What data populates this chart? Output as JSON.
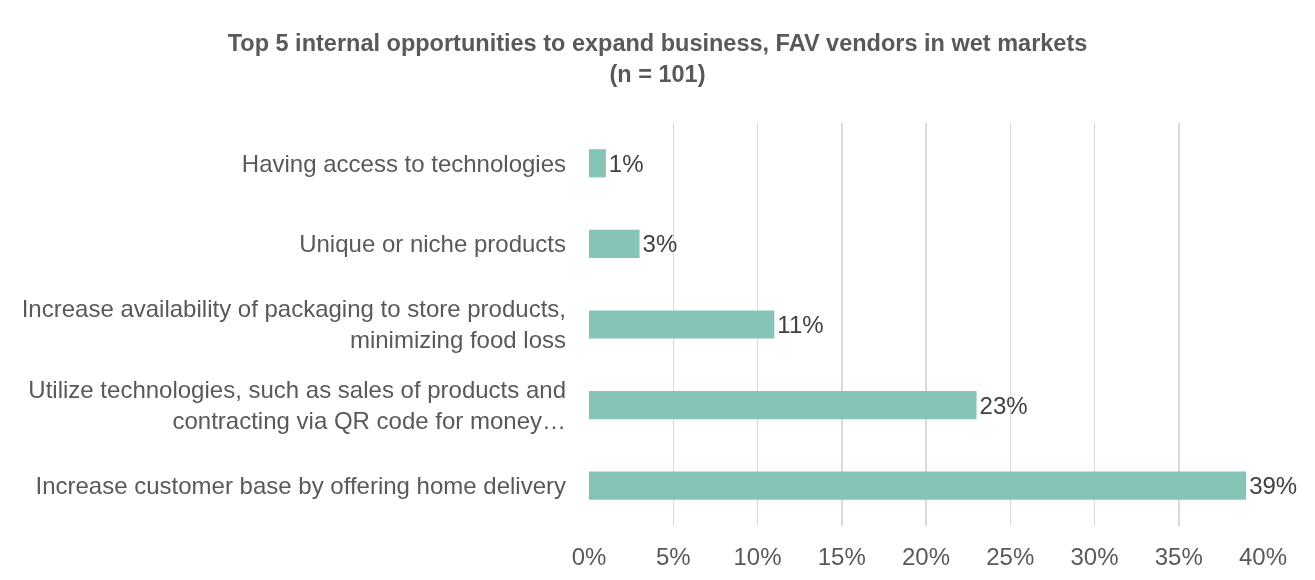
{
  "chart_data": {
    "type": "bar",
    "orientation": "horizontal",
    "title": "Top 5 internal opportunities to expand business, FAV vendors in wet markets\n(n = 101)",
    "categories": [
      "Having access to technologies",
      "Unique or niche products",
      "Increase availability of packaging to store products, minimizing food loss",
      "Utilize technologies, such as sales of products and contracting via QR code for money…",
      "Increase customer base by offering home delivery"
    ],
    "values": [
      1,
      3,
      11,
      23,
      39
    ],
    "value_labels": [
      "1%",
      "3%",
      "11%",
      "23%",
      "39%"
    ],
    "color": "#85c4b7",
    "xlim": [
      0,
      40
    ],
    "xticks": [
      {
        "value": 0,
        "label": "0%"
      },
      {
        "value": 5,
        "label": "5%"
      },
      {
        "value": 10,
        "label": "10%"
      },
      {
        "value": 15,
        "label": "15%"
      },
      {
        "value": 20,
        "label": "20%"
      },
      {
        "value": 25,
        "label": "25%"
      },
      {
        "value": 30,
        "label": "30%"
      },
      {
        "value": 35,
        "label": "35%"
      },
      {
        "value": 40,
        "label": "40%"
      }
    ],
    "grid": "x"
  }
}
